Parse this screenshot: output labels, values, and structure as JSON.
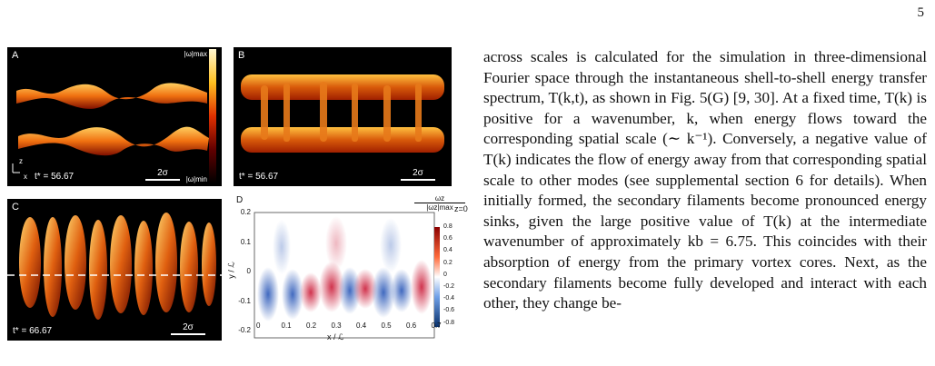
{
  "page_number": "5",
  "panel_a": {
    "label": "A",
    "time": "t* = 56.67",
    "scale": "2σ",
    "cbar_max": "|ω|max",
    "cbar_min": "|ω|min",
    "axis_z": "z",
    "axis_x": "x"
  },
  "panel_b": {
    "label": "B",
    "time": "t* = 56.67",
    "scale": "2σ"
  },
  "panel_c": {
    "label": "C",
    "time": "t* = 66.67",
    "scale": "2σ"
  },
  "panel_d": {
    "label": "D",
    "cbar_title_num": "ωz",
    "cbar_title_den": "|ωz|max",
    "cbar_zlabel": "z=0",
    "xlabel": "x / ℒ",
    "ylabel": "y / ℒ",
    "xticks": [
      "0",
      "0.1",
      "0.2",
      "0.3",
      "0.4",
      "0.5",
      "0.6",
      "0.7"
    ],
    "yticks": [
      "0.2",
      "0.1",
      "0",
      "-0.1",
      "-0.2"
    ],
    "cticks": [
      "0.8",
      "0.6",
      "0.4",
      "0.2",
      "0",
      "-0.2",
      "-0.4",
      "-0.6",
      "-0.8"
    ]
  },
  "body_text": "across scales is calculated for the simulation in three-dimensional Fourier space through the instantaneous shell-to-shell energy transfer spectrum, T(k,t), as shown in Fig. 5(G) [9, 30]. At a fixed time, T(k) is positive for a wavenumber, k, when energy flows toward the corresponding spatial scale (∼ k⁻¹). Conversely, a negative value of T(k) indicates the flow of energy away from that corresponding spatial scale to other modes (see supplemental section 6 for details). When initially formed, the secondary filaments become pronounced energy sinks, given the large positive value of T(k) at the intermediate wavenumber of approximately kb = 6.75. This coincides with their absorption of energy from the primary vortex cores. Next, as the secondary filaments become fully developed and interact with each other, they change be-",
  "colors": {
    "hot_low": "#8a0000",
    "hot_mid": "#ff5a00",
    "hot_high": "#ffe070",
    "red": "#c8102e",
    "blue": "#1f4fb4"
  }
}
